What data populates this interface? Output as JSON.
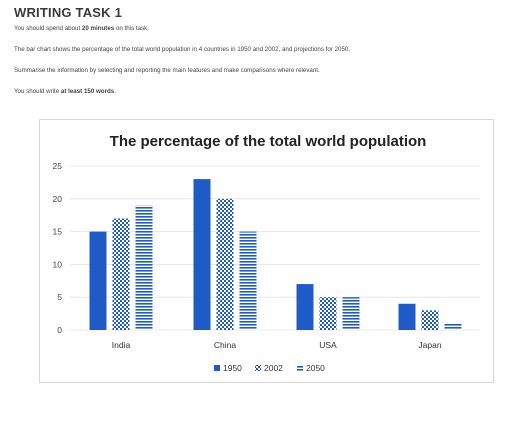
{
  "task": {
    "title": "WRITING TASK 1",
    "spend_prefix": "You should spend about ",
    "spend_bold": "20 minutes",
    "spend_suffix": " on this task.",
    "description": "The bar chart shows the percentage of the total world population in 4 countries in 1950 and 2002, and projections for 2050.",
    "instruction": "Summarise the information by selecting and reporting the main features and make comparisons where relevant.",
    "words_prefix": "You should write ",
    "words_bold": "at least 150 words",
    "words_suffix": "."
  },
  "colors": {
    "s1950": "#1f5bc6",
    "s2002": "#1f5bc6",
    "s2050": "#1f5bc6",
    "grid": "#e2e2e2",
    "text": "#222222"
  },
  "chart_data": {
    "type": "bar",
    "title": "The percentage of the total world population",
    "categories": [
      "India",
      "China",
      "USA",
      "Japan"
    ],
    "series": [
      {
        "name": "1950",
        "pattern": "solid",
        "values": [
          15,
          23,
          7,
          4
        ]
      },
      {
        "name": "2002",
        "pattern": "checker",
        "values": [
          17,
          20,
          5,
          3
        ]
      },
      {
        "name": "2050",
        "pattern": "horizontal-stripes",
        "values": [
          19,
          15,
          5,
          1
        ]
      }
    ],
    "yticks": [
      0,
      5,
      10,
      15,
      20,
      25
    ],
    "ylim": [
      0,
      25
    ],
    "grid": true,
    "legend": "bottom"
  }
}
